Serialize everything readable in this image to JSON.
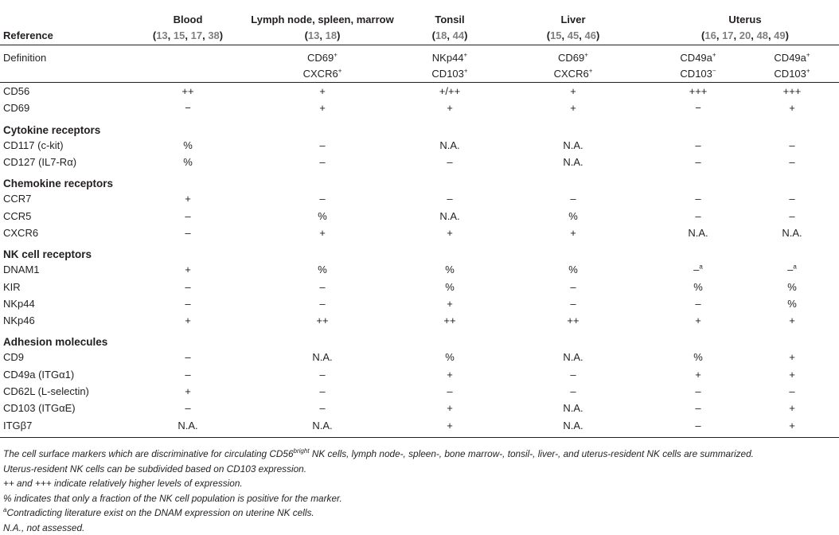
{
  "header": {
    "row_label": "Reference",
    "columns": [
      {
        "name": "Blood",
        "refs": [
          "13",
          "15",
          "17",
          "38"
        ]
      },
      {
        "name": "Lymph node, spleen, marrow",
        "refs": [
          "13",
          "18"
        ]
      },
      {
        "name": "Tonsil",
        "refs": [
          "18",
          "44"
        ]
      },
      {
        "name": "Liver",
        "refs": [
          "15",
          "45",
          "46"
        ]
      },
      {
        "name": "Uterus",
        "refs": [
          "16",
          "17",
          "20",
          "48",
          "49"
        ]
      }
    ],
    "ref_open": "(",
    "ref_close": ")",
    "ref_sep": ", "
  },
  "definition": {
    "label": "Definition",
    "cells": [
      "",
      [
        "CD69",
        "+",
        "CXCR6",
        "+"
      ],
      [
        "NKp44",
        "+",
        "CD103",
        "+"
      ],
      [
        "CD69",
        "+",
        "CXCR6",
        "+"
      ],
      [
        "CD49a",
        "+",
        "CD103",
        "−"
      ],
      [
        "CD49a",
        "+",
        "CD103",
        "+"
      ]
    ]
  },
  "rows": [
    {
      "type": "data",
      "label": "CD56",
      "values": [
        "++",
        "+",
        "+/++",
        "+",
        "+++",
        "+++"
      ]
    },
    {
      "type": "data",
      "label": "CD69",
      "values": [
        "−",
        "+",
        "+",
        "+",
        "−",
        "+"
      ]
    },
    {
      "type": "section",
      "label": "Cytokine receptors"
    },
    {
      "type": "data",
      "label": "CD117 (c-kit)",
      "values": [
        "%",
        "–",
        "N.A.",
        "N.A.",
        "–",
        "–"
      ]
    },
    {
      "type": "data",
      "label": "CD127 (IL7-Rα)",
      "values": [
        "%",
        "–",
        "–",
        "N.A.",
        "–",
        "–"
      ]
    },
    {
      "type": "section",
      "label": "Chemokine receptors"
    },
    {
      "type": "data",
      "label": "CCR7",
      "values": [
        "+",
        "–",
        "–",
        "–",
        "–",
        "–"
      ]
    },
    {
      "type": "data",
      "label": "CCR5",
      "values": [
        "–",
        "%",
        "N.A.",
        "%",
        "–",
        "–"
      ]
    },
    {
      "type": "data",
      "label": "CXCR6",
      "values": [
        "–",
        "+",
        "+",
        "+",
        "N.A.",
        "N.A."
      ]
    },
    {
      "type": "section",
      "label": "NK cell receptors"
    },
    {
      "type": "data",
      "label": "DNAM1",
      "values": [
        "+",
        "%",
        "%",
        "%",
        "–a",
        "–a"
      ]
    },
    {
      "type": "data",
      "label": "KIR",
      "values": [
        "–",
        "–",
        "%",
        "–",
        "%",
        "%"
      ]
    },
    {
      "type": "data",
      "label": "NKp44",
      "values": [
        "–",
        "–",
        "+",
        "–",
        "–",
        "%"
      ]
    },
    {
      "type": "data",
      "label": "NKp46",
      "values": [
        "+",
        "++",
        "++",
        "++",
        "+",
        "+"
      ]
    },
    {
      "type": "section",
      "label": "Adhesion molecules"
    },
    {
      "type": "data",
      "label": "CD9",
      "values": [
        "–",
        "N.A.",
        "%",
        "N.A.",
        "%",
        "+"
      ]
    },
    {
      "type": "data",
      "label": "CD49a (ITGα1)",
      "values": [
        "–",
        "–",
        "+",
        "–",
        "+",
        "+"
      ]
    },
    {
      "type": "data",
      "label": "CD62L (L-selectin)",
      "values": [
        "+",
        "–",
        "–",
        "–",
        "–",
        "–"
      ]
    },
    {
      "type": "data",
      "label": "CD103 (ITGαE)",
      "values": [
        "–",
        "–",
        "+",
        "N.A.",
        "–",
        "+"
      ]
    },
    {
      "type": "data",
      "label": "ITGβ7",
      "values": [
        "N.A.",
        "N.A.",
        "+",
        "N.A.",
        "–",
        "+"
      ]
    }
  ],
  "footnotes": {
    "line1_before": "The cell surface markers which are discriminative for circulating CD56",
    "line1_sup": "bright",
    "line1_after": " NK cells, lymph node-, spleen-, bone marrow-, tonsil-, liver-, and uterus-resident NK cells are summarized.",
    "line2": "Uterus-resident NK cells can be subdivided based on CD103 expression.",
    "line3": "++ and +++ indicate relatively higher levels of expression.",
    "line4": "% indicates that only a fraction of the NK cell population is positive for the marker.",
    "line5_sup": "a",
    "line5": "Contradicting literature exist on the DNAM expression on uterine NK cells.",
    "line6": "N.A., not assessed."
  }
}
